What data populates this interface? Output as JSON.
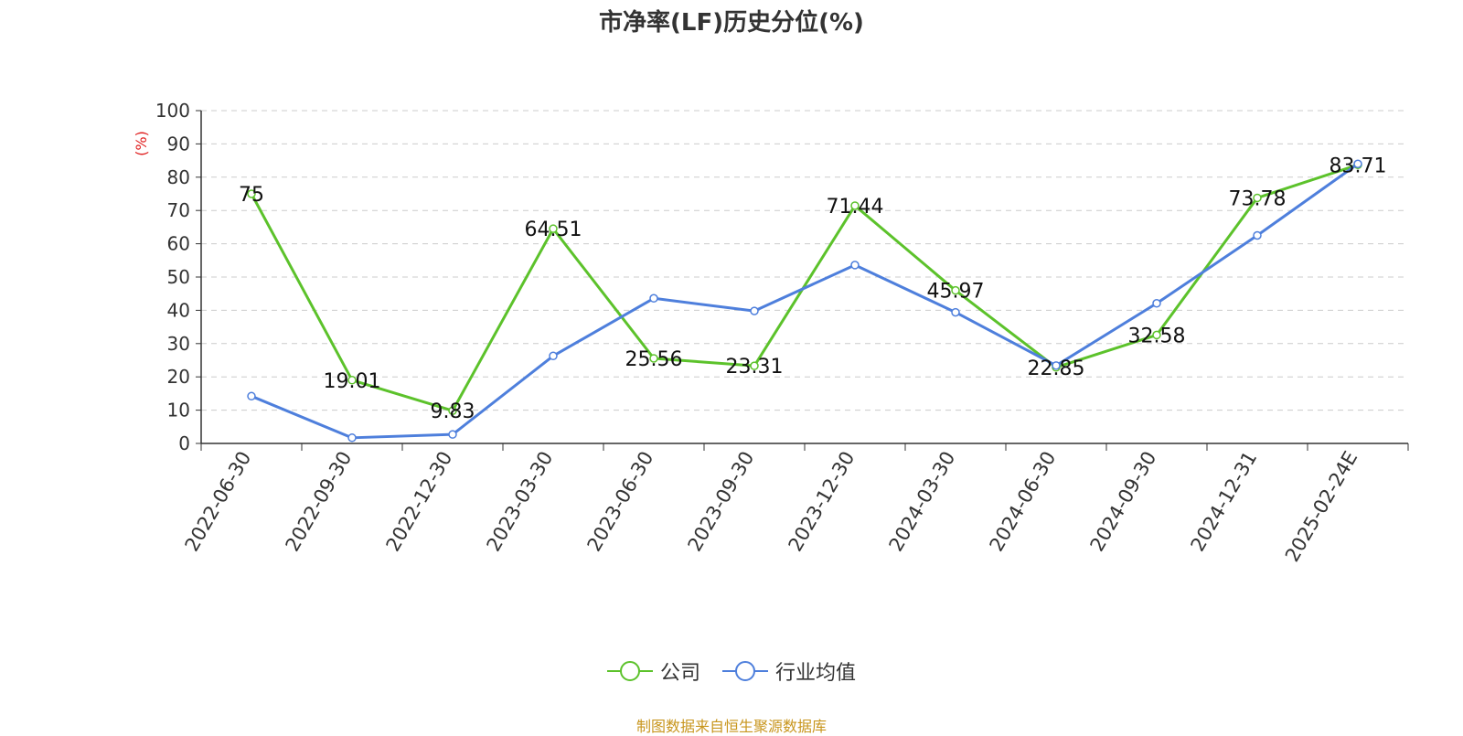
{
  "chart_data": {
    "type": "line",
    "title": "市净率(LF)历史分位(%)",
    "ylabel": "(%)",
    "ylim": [
      0,
      100
    ],
    "yticks": [
      "0",
      "10",
      "20",
      "30",
      "40",
      "50",
      "60",
      "70",
      "80",
      "90",
      "100"
    ],
    "grid": true,
    "legend_position": "bottom",
    "categories": [
      "2022-06-30",
      "2022-09-30",
      "2022-12-30",
      "2023-03-30",
      "2023-06-30",
      "2023-09-30",
      "2023-12-30",
      "2024-03-30",
      "2024-06-30",
      "2024-09-30",
      "2024-12-31",
      "2025-02-24E"
    ],
    "series": [
      {
        "name": "公司",
        "color": "#5cc22b",
        "values": [
          75,
          19.01,
          9.83,
          64.51,
          25.56,
          23.31,
          71.44,
          45.97,
          22.85,
          32.58,
          73.78,
          83.71
        ],
        "labels": [
          "75",
          "19.01",
          "9.83",
          "64.51",
          "25.56",
          "23.31",
          "71.44",
          "45.97",
          "22.85",
          "32.58",
          "73.78",
          "83.71"
        ]
      },
      {
        "name": "行业均值",
        "color": "#4e7fdc",
        "values": [
          14.2,
          1.7,
          2.7,
          26.3,
          43.6,
          39.8,
          53.6,
          39.4,
          23.4,
          42.1,
          62.5,
          84
        ]
      }
    ]
  },
  "source_note": "制图数据来自恒生聚源数据库"
}
